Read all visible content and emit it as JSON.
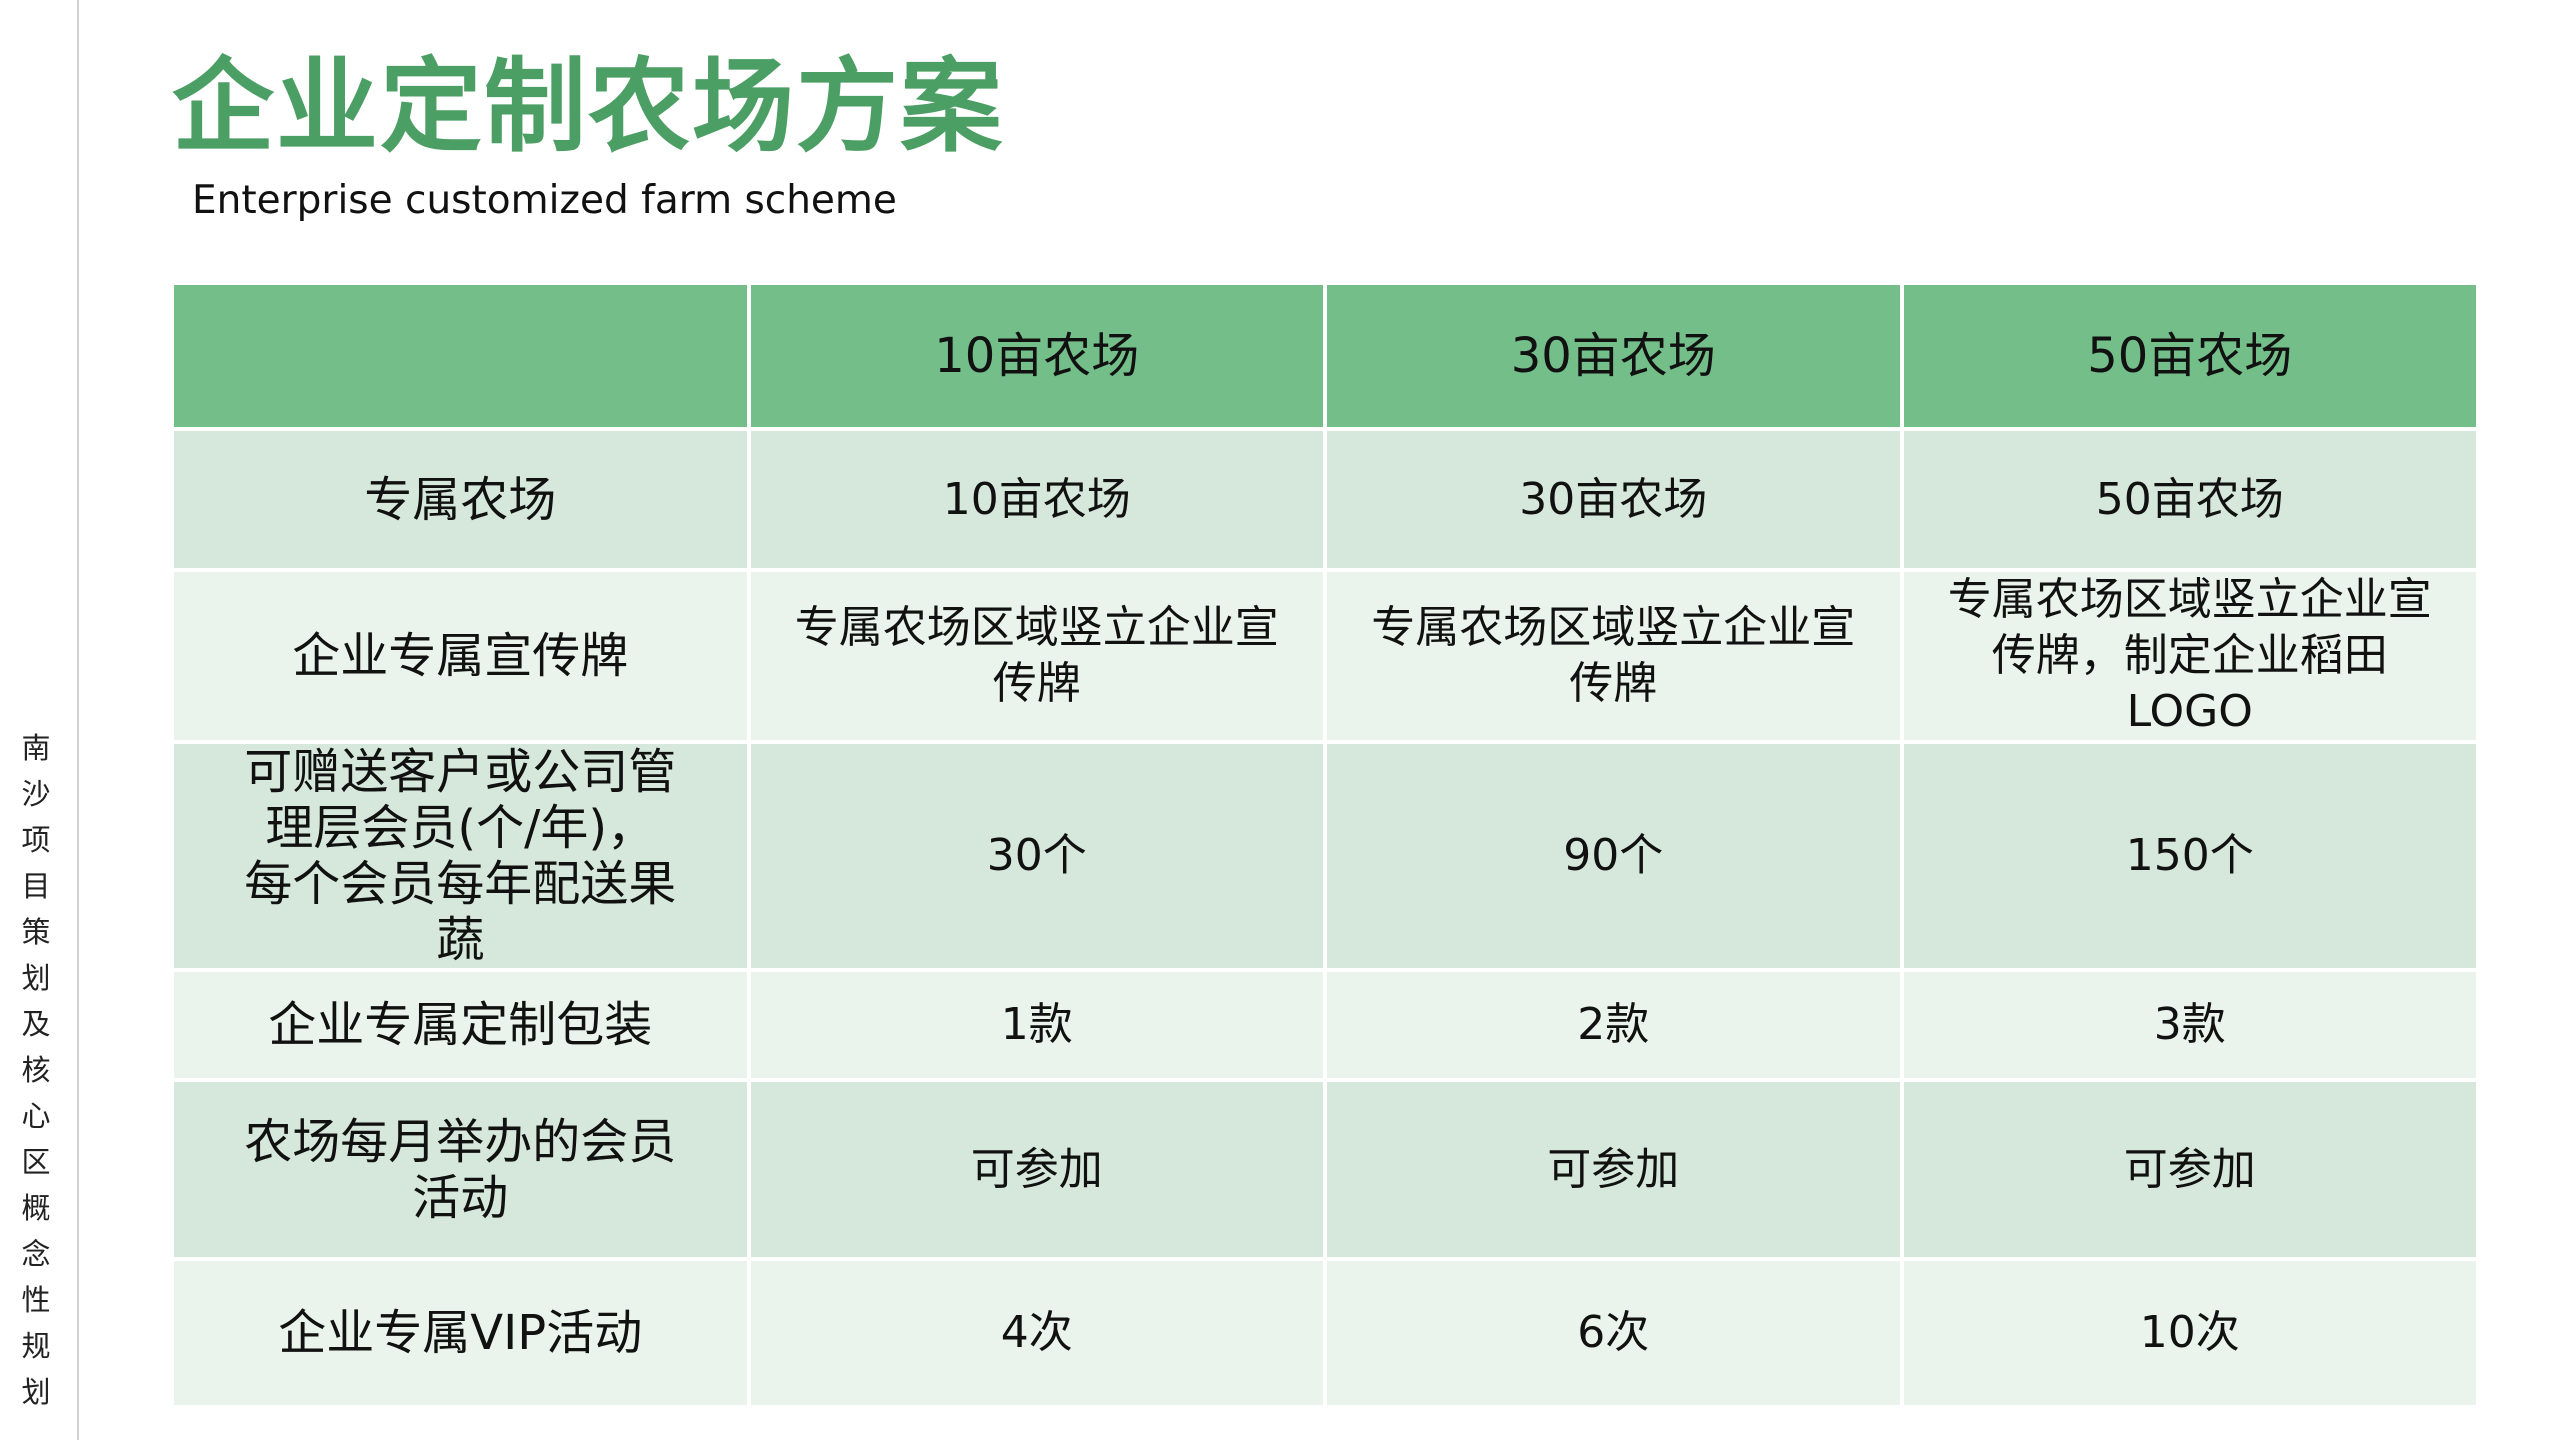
{
  "sidebar": "南沙项目策划及核心区概念性规划",
  "header": {
    "title": "企业定制农场方案",
    "subtitle": "Enterprise customized farm scheme"
  },
  "table": {
    "columns": [
      "10亩农场",
      "30亩农场",
      "50亩农场"
    ],
    "rows": [
      [
        "专属农场",
        "10亩农场",
        "30亩农场",
        "50亩农场"
      ],
      [
        "企业专属宣传牌",
        "专属农场区域竖立企业宣传牌",
        "专属农场区域竖立企业宣传牌",
        "专属农场区域竖立企业宣传牌，制定企业稻田LOGO"
      ],
      [
        "可赠送客户或公司管理层会员(个/年)，每个会员每年配送果蔬",
        "30个",
        "90个",
        "150个"
      ],
      [
        "企业专属定制包装",
        "1款",
        "2款",
        "3款"
      ],
      [
        "农场每月举办的会员活动",
        "可参加",
        "可参加",
        "可参加"
      ],
      [
        "企业专属VIP活动",
        "4次",
        "6次",
        "10次"
      ]
    ]
  }
}
